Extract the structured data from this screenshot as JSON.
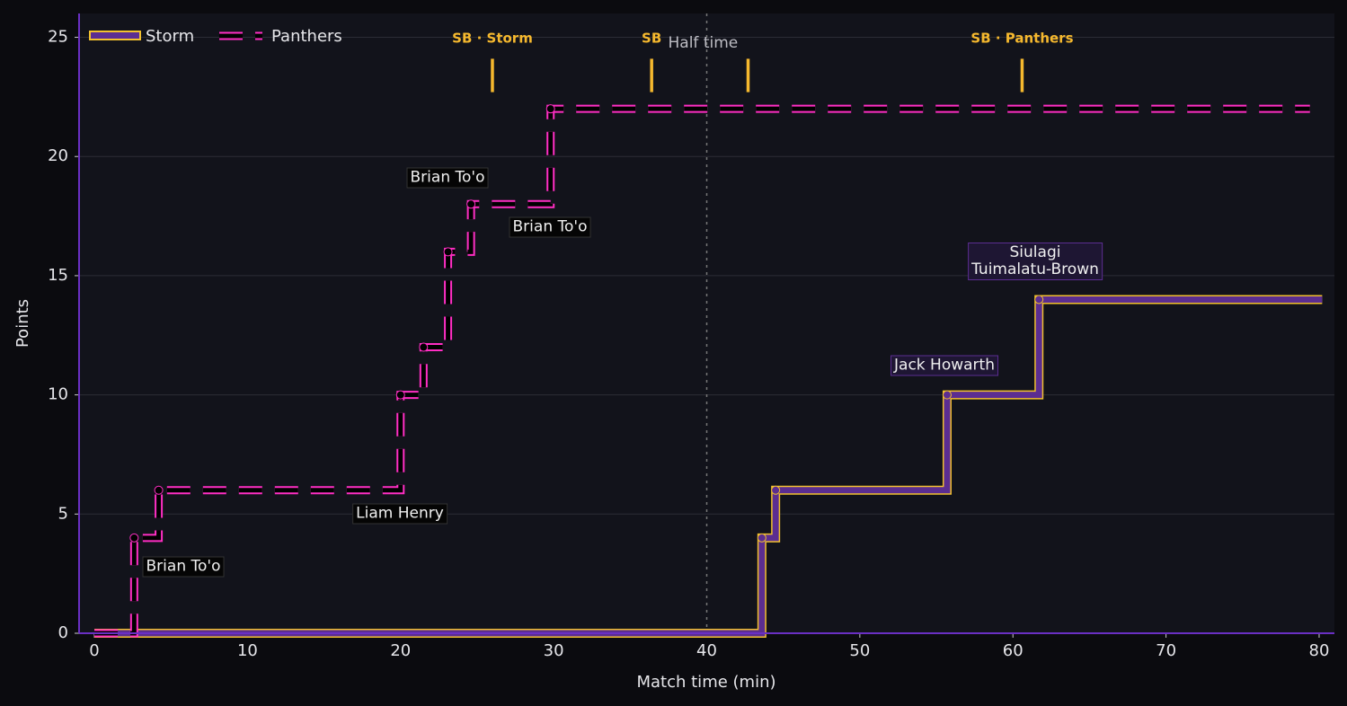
{
  "chart_data": {
    "type": "step",
    "x_label": "Match time (min)",
    "y_label": "Points",
    "xlim": [
      -1,
      81
    ],
    "ylim": [
      0,
      26
    ],
    "xticks": [
      0,
      10,
      20,
      30,
      40,
      50,
      60,
      70,
      80
    ],
    "yticks": [
      0,
      5,
      10,
      15,
      20,
      25
    ],
    "grid": true,
    "legend": "upper left",
    "series": [
      {
        "name": "Storm",
        "color": "#5b2d91",
        "edge_color": "#f2c12e",
        "style": "solid",
        "x": [
          0,
          43.6,
          44.5,
          55.7,
          61.7,
          80.2
        ],
        "values": [
          0,
          4,
          6,
          10,
          14,
          14
        ]
      },
      {
        "name": "Panthers",
        "color": "#ff2ec4",
        "edge_color": "#000000",
        "style": "dashed",
        "x": [
          0,
          2.6,
          4.2,
          20,
          21.5,
          23.1,
          24.6,
          29.8,
          79.4
        ],
        "values": [
          0,
          4,
          6,
          10,
          12,
          16,
          18,
          22,
          22
        ]
      }
    ],
    "annotations": [
      "Brian To'o",
      "Liam Henry",
      "Brian To'o",
      "Brian To'o",
      "Jack Howarth",
      "Siulagi\nTuimalatu-Brown"
    ],
    "events": [
      {
        "x": 26,
        "label": "SB · Storm"
      },
      {
        "x": 36.4,
        "label": "SB"
      },
      {
        "x": 42.7,
        "label": null
      },
      {
        "x": 60.6,
        "label": "SB · Panthers"
      }
    ],
    "event_color": "#f5b82e",
    "half_time": {
      "x": 40,
      "label": "Half time"
    }
  }
}
